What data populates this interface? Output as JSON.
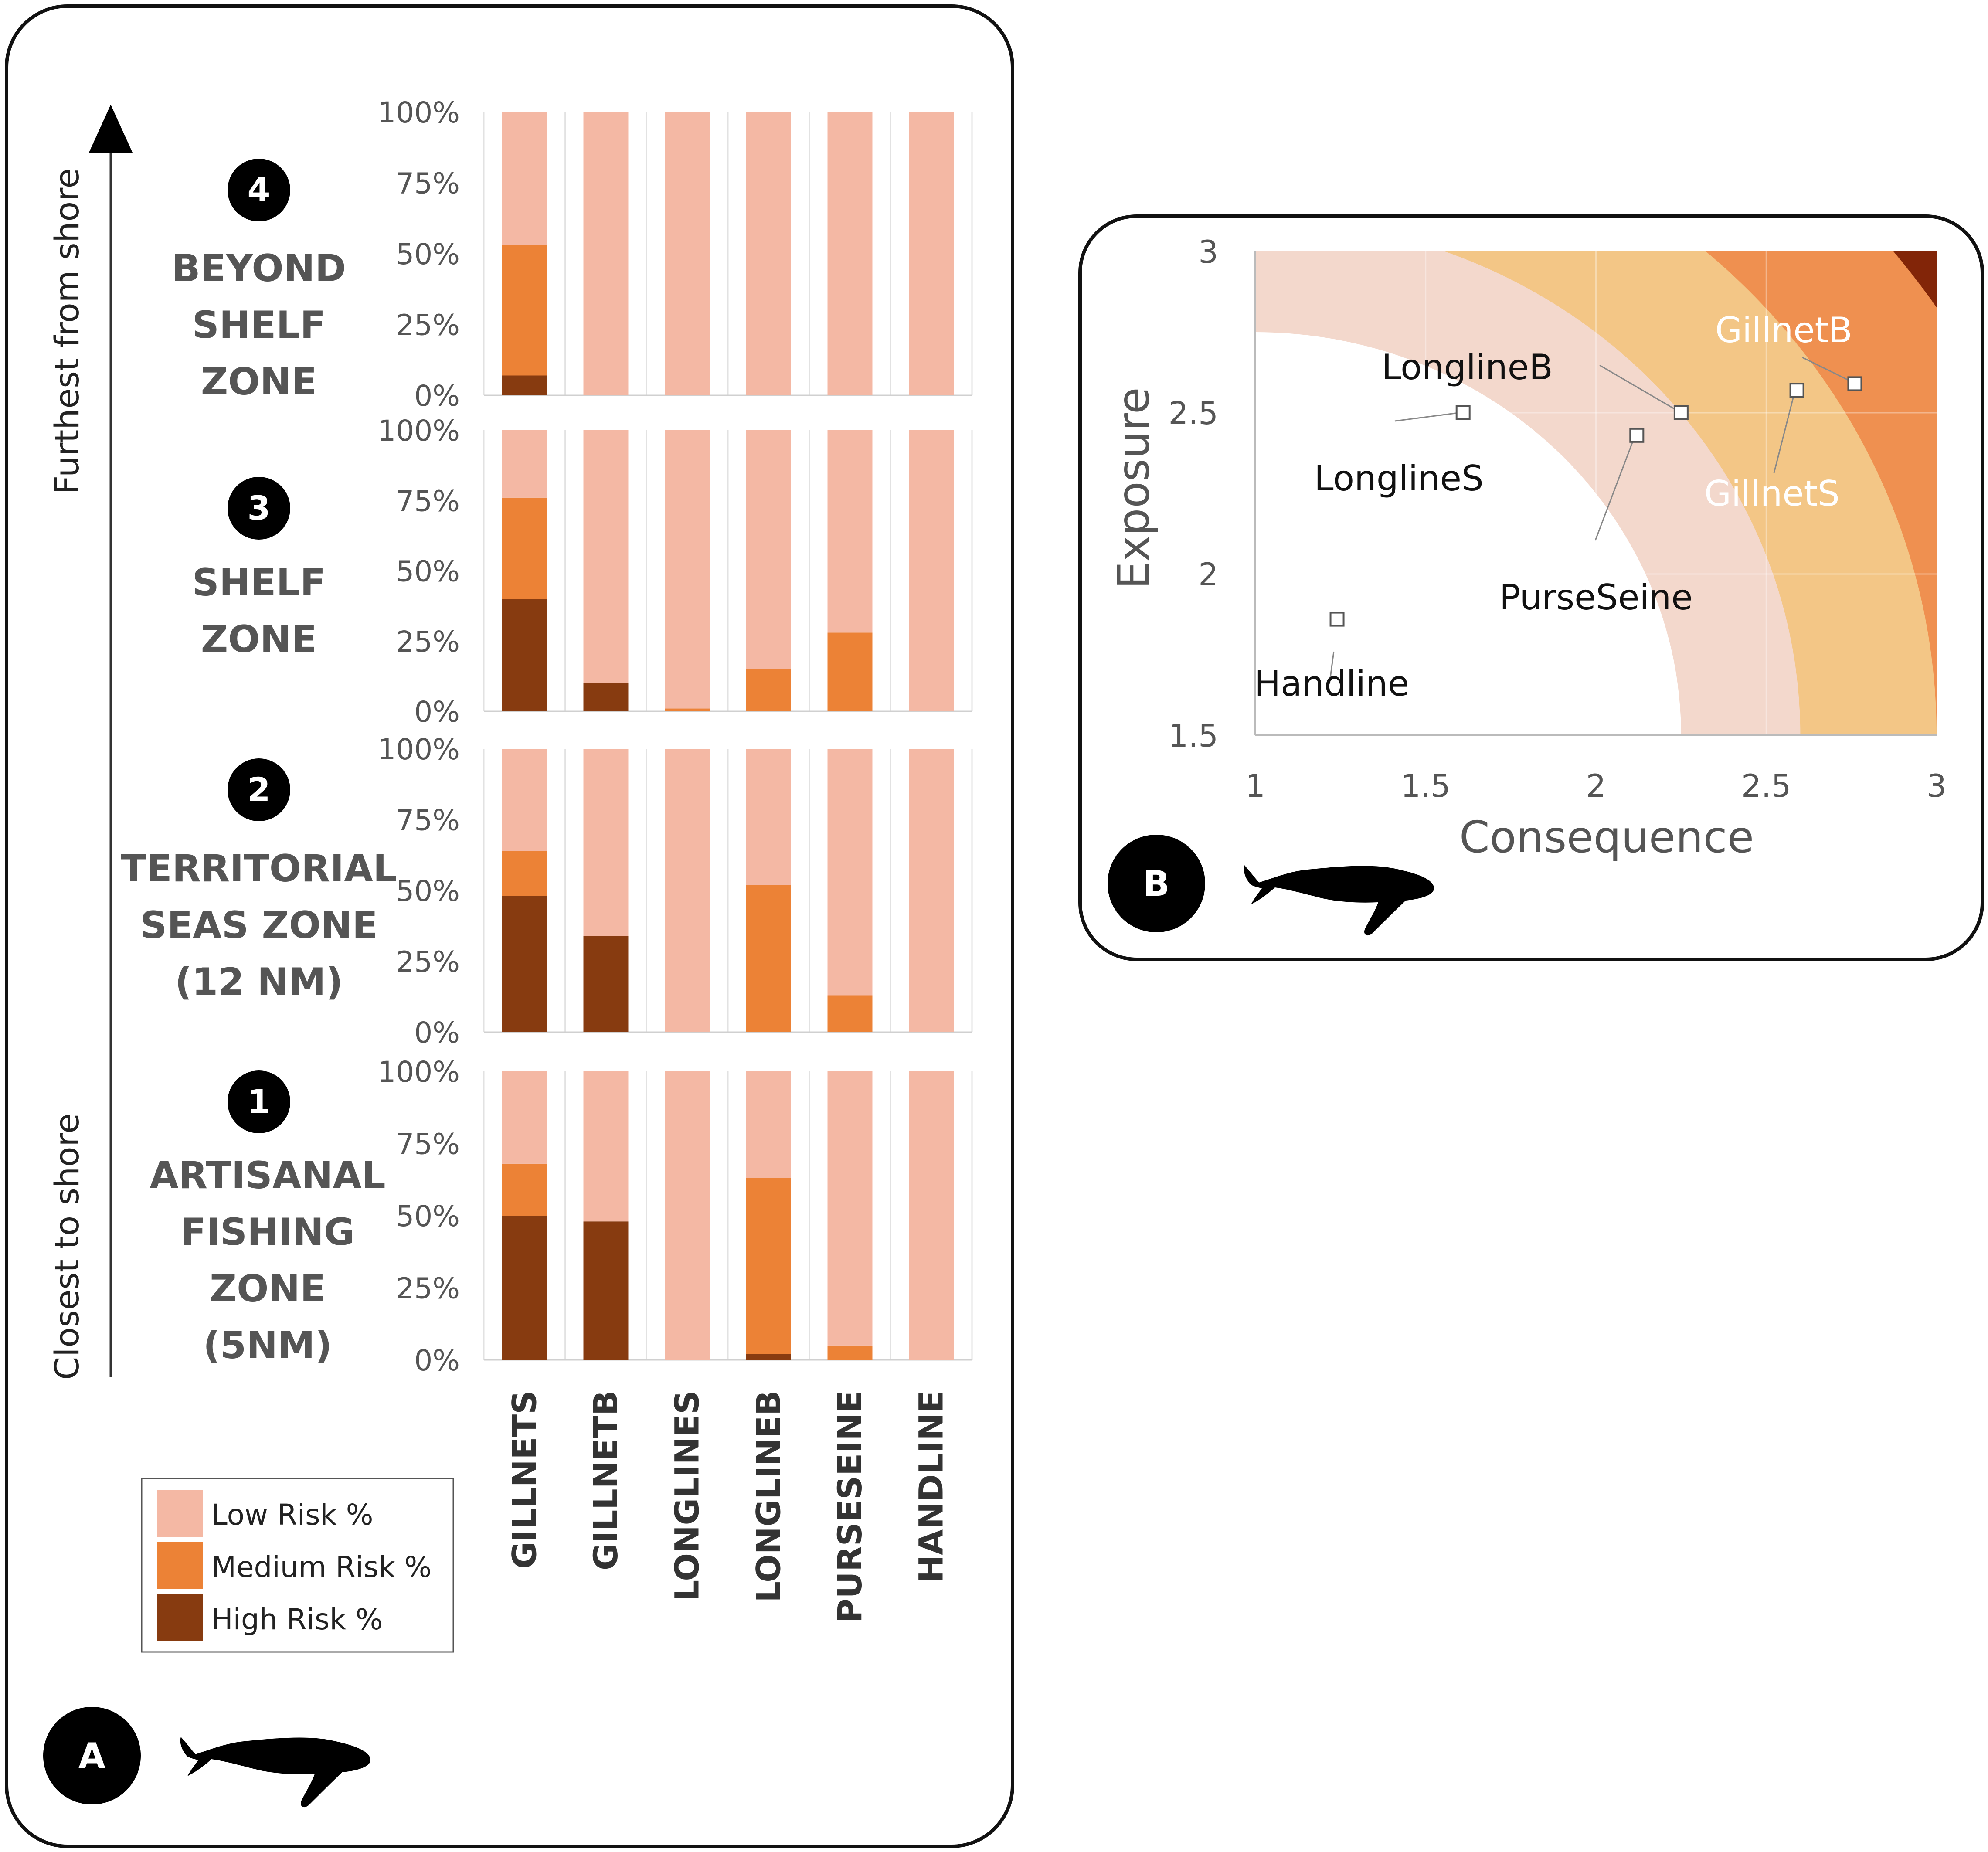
{
  "panel_a": {
    "label": "A",
    "arrow_top_label": "Furthest from shore",
    "arrow_bottom_label": "Closest to shore",
    "zones": [
      {
        "number": "4",
        "lines": [
          "BEYOND",
          "SHELF",
          "ZONE"
        ]
      },
      {
        "number": "3",
        "lines": [
          "SHELF",
          "ZONE"
        ]
      },
      {
        "number": "2",
        "lines": [
          "TERRITORIAL",
          "SEAS ZONE",
          "(12 NM)"
        ]
      },
      {
        "number": "1",
        "lines": [
          "ARTISANAL",
          "FISHING",
          "ZONE",
          "(5NM)"
        ]
      }
    ],
    "y_ticks": [
      "0%",
      "25%",
      "50%",
      "75%",
      "100%"
    ],
    "gear_labels": [
      "GILLNETS",
      "GILLNETB",
      "LONGLINES",
      "LONGLINEB",
      "PURSESEINE",
      "HANDLINE"
    ],
    "legend": [
      "Low Risk %",
      "Medium Risk %",
      "High Risk %"
    ]
  },
  "panel_b": {
    "label": "B",
    "xlabel": "Consequence",
    "ylabel": "Exposure",
    "x_ticks": [
      "1",
      "1.5",
      "2",
      "2.5",
      "3"
    ],
    "y_ticks": [
      "1.5",
      "2",
      "2.5",
      "3"
    ]
  },
  "colors": {
    "low": "#f4b8a4",
    "medium": "#ec8236",
    "high": "#873b10",
    "zone_white": "#ffffff",
    "zone_pink": "#f3d8cc",
    "zone_tan": "#f3c686",
    "zone_orange": "#ef9050",
    "zone_red": "#822508",
    "zone_dark": "#561506"
  },
  "chart_data": [
    {
      "type": "bar",
      "stacked": true,
      "percent": true,
      "facet": "Zone 4",
      "categories": [
        "GILLNETS",
        "GILLNETB",
        "LONGLINES",
        "LONGLINEB",
        "PURSESEINE",
        "HANDLINE"
      ],
      "series": [
        {
          "name": "High Risk %",
          "values": [
            7,
            0,
            0,
            0,
            0,
            0
          ]
        },
        {
          "name": "Medium Risk %",
          "values": [
            46,
            0,
            0,
            0,
            0,
            0
          ]
        },
        {
          "name": "Low Risk %",
          "values": [
            47,
            100,
            100,
            100,
            100,
            100
          ]
        }
      ],
      "ylim": [
        0,
        100
      ]
    },
    {
      "type": "bar",
      "stacked": true,
      "percent": true,
      "facet": "Zone 3",
      "categories": [
        "GILLNETS",
        "GILLNETB",
        "LONGLINES",
        "LONGLINEB",
        "PURSESEINE",
        "HANDLINE"
      ],
      "series": [
        {
          "name": "High Risk %",
          "values": [
            40,
            10,
            0,
            0,
            0,
            0
          ]
        },
        {
          "name": "Medium Risk %",
          "values": [
            36,
            0,
            1,
            15,
            28,
            0
          ]
        },
        {
          "name": "Low Risk %",
          "values": [
            24,
            90,
            99,
            85,
            72,
            100
          ]
        }
      ],
      "ylim": [
        0,
        100
      ]
    },
    {
      "type": "bar",
      "stacked": true,
      "percent": true,
      "facet": "Zone 2",
      "categories": [
        "GILLNETS",
        "GILLNETB",
        "LONGLINES",
        "LONGLINEB",
        "PURSESEINE",
        "HANDLINE"
      ],
      "series": [
        {
          "name": "High Risk %",
          "values": [
            48,
            34,
            0,
            0,
            0,
            0
          ]
        },
        {
          "name": "Medium Risk %",
          "values": [
            16,
            0,
            0,
            52,
            13,
            0
          ]
        },
        {
          "name": "Low Risk %",
          "values": [
            36,
            66,
            100,
            48,
            87,
            100
          ]
        }
      ],
      "ylim": [
        0,
        100
      ]
    },
    {
      "type": "bar",
      "stacked": true,
      "percent": true,
      "facet": "Zone 1",
      "categories": [
        "GILLNETS",
        "GILLNETB",
        "LONGLINES",
        "LONGLINEB",
        "PURSESEINE",
        "HANDLINE"
      ],
      "series": [
        {
          "name": "High Risk %",
          "values": [
            50,
            48,
            0,
            2,
            0,
            0
          ]
        },
        {
          "name": "Medium Risk %",
          "values": [
            18,
            0,
            0,
            61,
            5,
            0
          ]
        },
        {
          "name": "Low Risk %",
          "values": [
            32,
            52,
            100,
            37,
            95,
            100
          ]
        }
      ],
      "ylim": [
        0,
        100
      ]
    },
    {
      "type": "scatter",
      "xlabel": "Consequence",
      "ylabel": "Exposure",
      "xlim": [
        1,
        3
      ],
      "ylim": [
        1.5,
        3
      ],
      "points": [
        {
          "label": "Handline",
          "x": 1.24,
          "y": 1.86
        },
        {
          "label": "LonglineS",
          "x": 1.61,
          "y": 2.5
        },
        {
          "label": "LonglineB",
          "x": 2.25,
          "y": 2.5
        },
        {
          "label": "PurseSeine",
          "x": 2.12,
          "y": 2.43
        },
        {
          "label": "GillnetS",
          "x": 2.59,
          "y": 2.57
        },
        {
          "label": "GillnetB",
          "x": 2.76,
          "y": 2.59
        }
      ],
      "risk_zone_radii": [
        1.25,
        1.6,
        2.0,
        2.4,
        2.8
      ]
    }
  ]
}
